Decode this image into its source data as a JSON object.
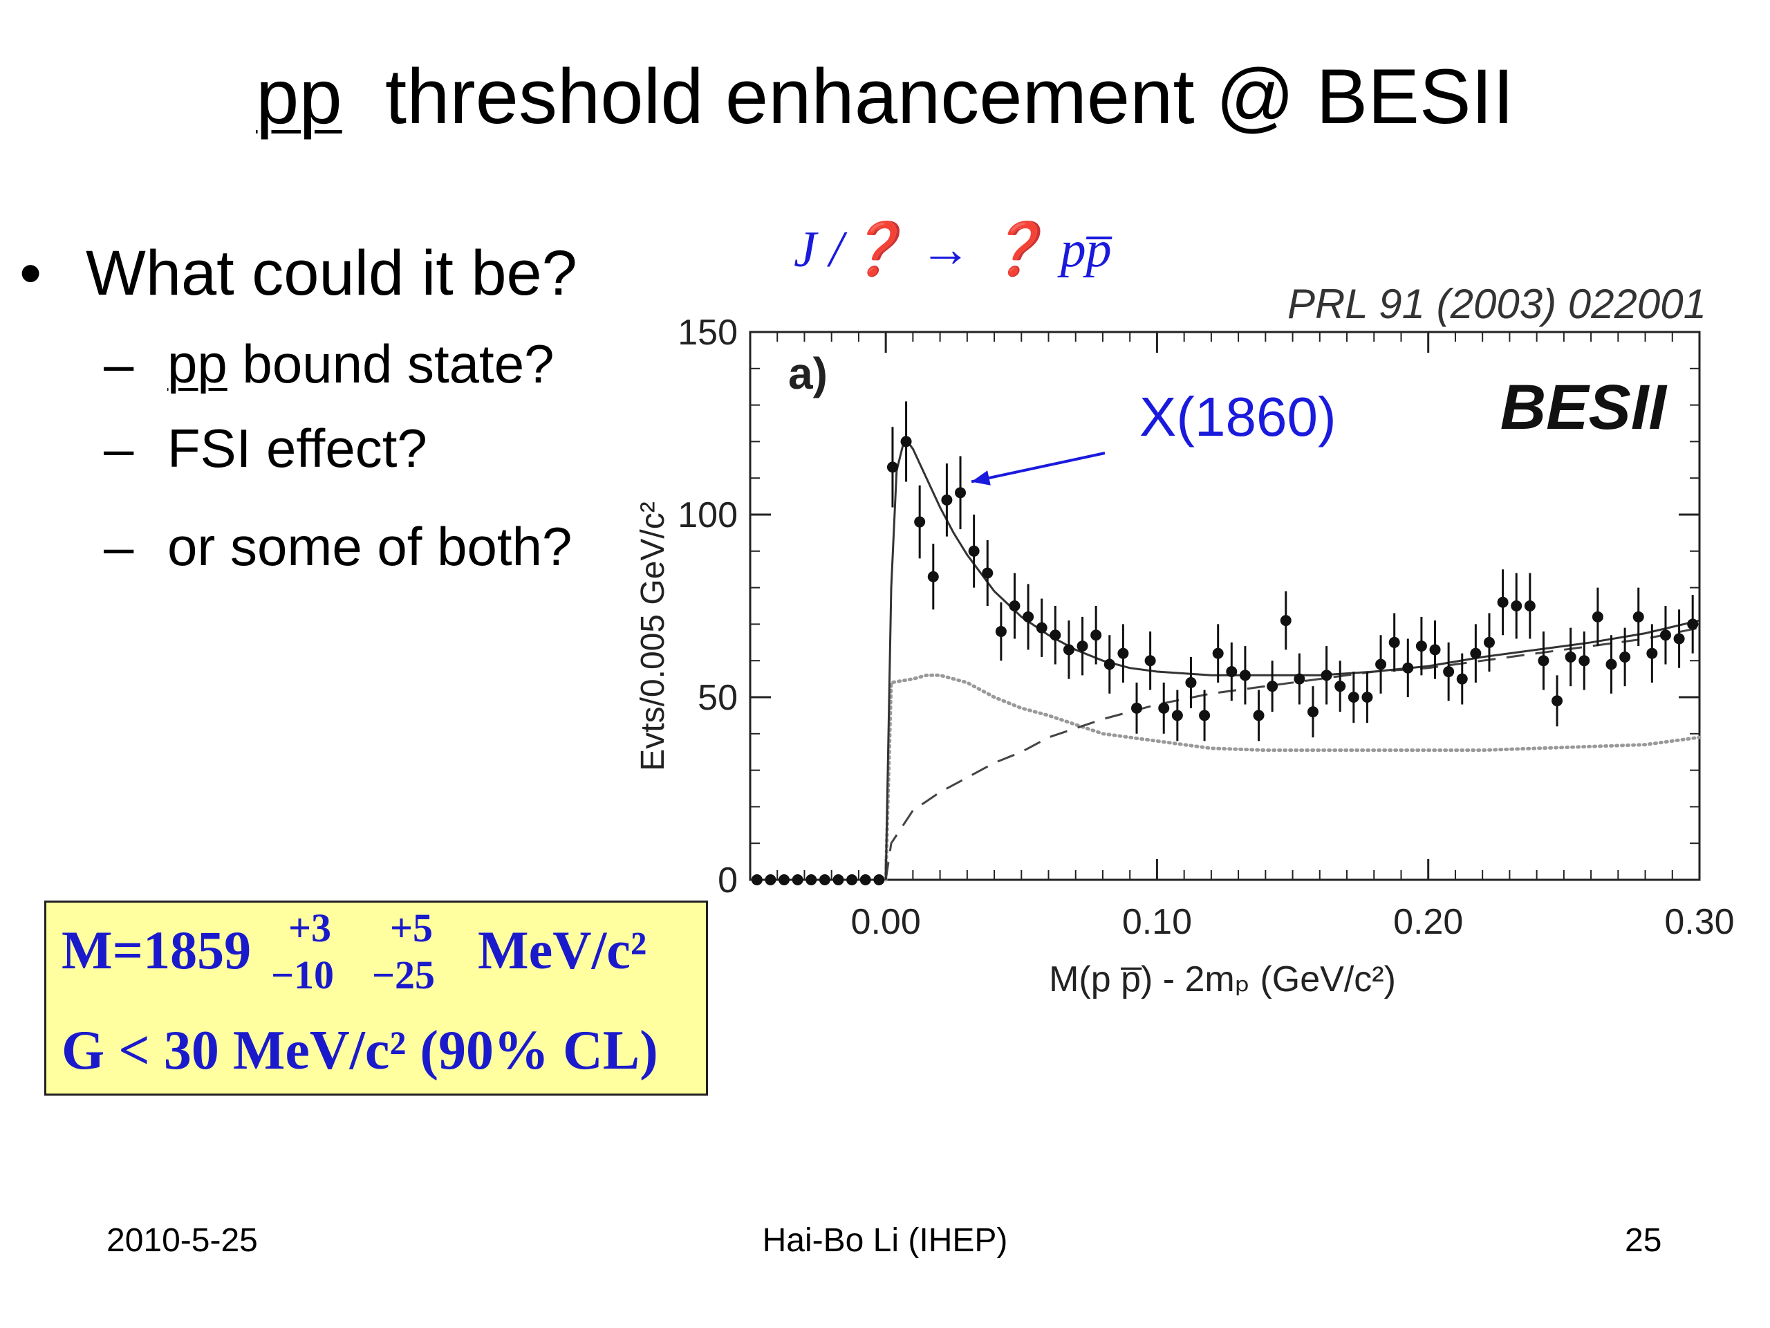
{
  "slide": {
    "title_pp": "pp",
    "title_rest": "threshold enhancement @ BESII",
    "bullet": "What could it be?",
    "sub_items": [
      {
        "dash": "–",
        "pp": "pp",
        "text": " bound state?"
      },
      {
        "dash": "–",
        "text": "FSI effect?"
      },
      {
        "dash": "–",
        "text": "or some of both?"
      }
    ],
    "process_label": "J /❓ → ❓ pp̅"
  },
  "result_box": {
    "mass_prefix": "M=1859",
    "mass_up1": "+3",
    "mass_down1": "−10",
    "mass_up2": "+5",
    "mass_down2": "−25",
    "mass_unit": "MeV/c²",
    "width_line": "G < 30 MeV/c² (90% CL)",
    "text_color": "#1a1acc",
    "background_color": "#ffffa0"
  },
  "footer": {
    "date": "2010-5-25",
    "author": "Hai-Bo Li (IHEP)",
    "page": "25"
  },
  "chart_data": {
    "type": "scatter",
    "panel_label": "a)",
    "reference": "PRL 91 (2003) 022001",
    "experiment": "BESII",
    "annotation": "X(1860)",
    "annotation_color": "#1a1add",
    "ylabel": "Evts/0.005 GeV/c²",
    "xlabel": "M(p p̅) - 2mₚ (GeV/c²)",
    "xlim": [
      -0.05,
      0.3
    ],
    "ylim": [
      0,
      150
    ],
    "x_ticks": [
      0.0,
      0.1,
      0.2,
      0.3
    ],
    "x_tick_labels": [
      "0.00",
      "0.10",
      "0.20",
      "0.30"
    ],
    "y_ticks": [
      0,
      50,
      100,
      150
    ],
    "y_tick_labels": [
      "0",
      "50",
      "100",
      "150"
    ],
    "points": [
      {
        "x": -0.0475,
        "y": 0,
        "err": 0
      },
      {
        "x": -0.0425,
        "y": 0,
        "err": 0
      },
      {
        "x": -0.0375,
        "y": 0,
        "err": 0
      },
      {
        "x": -0.0325,
        "y": 0,
        "err": 0
      },
      {
        "x": -0.0275,
        "y": 0,
        "err": 0
      },
      {
        "x": -0.0225,
        "y": 0,
        "err": 0
      },
      {
        "x": -0.0175,
        "y": 0,
        "err": 0
      },
      {
        "x": -0.0125,
        "y": 0,
        "err": 0
      },
      {
        "x": -0.0075,
        "y": 0,
        "err": 0
      },
      {
        "x": -0.0025,
        "y": 0,
        "err": 0
      },
      {
        "x": 0.0025,
        "y": 113,
        "err": 11
      },
      {
        "x": 0.0075,
        "y": 120,
        "err": 11
      },
      {
        "x": 0.0125,
        "y": 98,
        "err": 10
      },
      {
        "x": 0.0175,
        "y": 83,
        "err": 9
      },
      {
        "x": 0.0225,
        "y": 104,
        "err": 10
      },
      {
        "x": 0.0275,
        "y": 106,
        "err": 10
      },
      {
        "x": 0.0325,
        "y": 90,
        "err": 10
      },
      {
        "x": 0.0375,
        "y": 84,
        "err": 9
      },
      {
        "x": 0.0425,
        "y": 68,
        "err": 8
      },
      {
        "x": 0.0475,
        "y": 75,
        "err": 9
      },
      {
        "x": 0.0525,
        "y": 72,
        "err": 9
      },
      {
        "x": 0.0575,
        "y": 69,
        "err": 8
      },
      {
        "x": 0.0625,
        "y": 67,
        "err": 8
      },
      {
        "x": 0.0675,
        "y": 63,
        "err": 8
      },
      {
        "x": 0.0725,
        "y": 64,
        "err": 8
      },
      {
        "x": 0.0775,
        "y": 67,
        "err": 8
      },
      {
        "x": 0.0825,
        "y": 59,
        "err": 8
      },
      {
        "x": 0.0875,
        "y": 62,
        "err": 8
      },
      {
        "x": 0.0925,
        "y": 47,
        "err": 7
      },
      {
        "x": 0.0975,
        "y": 60,
        "err": 8
      },
      {
        "x": 0.1025,
        "y": 47,
        "err": 7
      },
      {
        "x": 0.1075,
        "y": 45,
        "err": 7
      },
      {
        "x": 0.1125,
        "y": 54,
        "err": 7
      },
      {
        "x": 0.1175,
        "y": 45,
        "err": 7
      },
      {
        "x": 0.1225,
        "y": 62,
        "err": 8
      },
      {
        "x": 0.1275,
        "y": 57,
        "err": 8
      },
      {
        "x": 0.1325,
        "y": 56,
        "err": 8
      },
      {
        "x": 0.1375,
        "y": 45,
        "err": 7
      },
      {
        "x": 0.1425,
        "y": 53,
        "err": 7
      },
      {
        "x": 0.1475,
        "y": 71,
        "err": 8
      },
      {
        "x": 0.1525,
        "y": 55,
        "err": 7
      },
      {
        "x": 0.1575,
        "y": 46,
        "err": 7
      },
      {
        "x": 0.1625,
        "y": 56,
        "err": 8
      },
      {
        "x": 0.1675,
        "y": 53,
        "err": 7
      },
      {
        "x": 0.1725,
        "y": 50,
        "err": 7
      },
      {
        "x": 0.1775,
        "y": 50,
        "err": 7
      },
      {
        "x": 0.1825,
        "y": 59,
        "err": 8
      },
      {
        "x": 0.1875,
        "y": 65,
        "err": 8
      },
      {
        "x": 0.1925,
        "y": 58,
        "err": 8
      },
      {
        "x": 0.1975,
        "y": 64,
        "err": 8
      },
      {
        "x": 0.2025,
        "y": 63,
        "err": 8
      },
      {
        "x": 0.2075,
        "y": 57,
        "err": 8
      },
      {
        "x": 0.2125,
        "y": 55,
        "err": 7
      },
      {
        "x": 0.2175,
        "y": 62,
        "err": 8
      },
      {
        "x": 0.2225,
        "y": 65,
        "err": 8
      },
      {
        "x": 0.2275,
        "y": 76,
        "err": 9
      },
      {
        "x": 0.2325,
        "y": 75,
        "err": 9
      },
      {
        "x": 0.2375,
        "y": 75,
        "err": 9
      },
      {
        "x": 0.2425,
        "y": 60,
        "err": 8
      },
      {
        "x": 0.2475,
        "y": 49,
        "err": 7
      },
      {
        "x": 0.2525,
        "y": 61,
        "err": 8
      },
      {
        "x": 0.2575,
        "y": 60,
        "err": 8
      },
      {
        "x": 0.2625,
        "y": 72,
        "err": 8
      },
      {
        "x": 0.2675,
        "y": 59,
        "err": 8
      },
      {
        "x": 0.2725,
        "y": 61,
        "err": 8
      },
      {
        "x": 0.2775,
        "y": 72,
        "err": 8
      },
      {
        "x": 0.2825,
        "y": 62,
        "err": 8
      },
      {
        "x": 0.2875,
        "y": 67,
        "err": 8
      },
      {
        "x": 0.2925,
        "y": 66,
        "err": 8
      },
      {
        "x": 0.2975,
        "y": 70,
        "err": 8
      }
    ],
    "curves": {
      "total_fit": [
        [
          0.0,
          0
        ],
        [
          0.002,
          80
        ],
        [
          0.004,
          112
        ],
        [
          0.007,
          121
        ],
        [
          0.01,
          118
        ],
        [
          0.015,
          110
        ],
        [
          0.02,
          102
        ],
        [
          0.025,
          95
        ],
        [
          0.03,
          89
        ],
        [
          0.035,
          84
        ],
        [
          0.04,
          79
        ],
        [
          0.05,
          72
        ],
        [
          0.06,
          67
        ],
        [
          0.07,
          63
        ],
        [
          0.08,
          60
        ],
        [
          0.09,
          58
        ],
        [
          0.1,
          57
        ],
        [
          0.12,
          56
        ],
        [
          0.14,
          56
        ],
        [
          0.16,
          56
        ],
        [
          0.18,
          57
        ],
        [
          0.2,
          58.5
        ],
        [
          0.22,
          61
        ],
        [
          0.24,
          63
        ],
        [
          0.26,
          65
        ],
        [
          0.28,
          67.5
        ],
        [
          0.3,
          71
        ]
      ],
      "background": [
        [
          0.0,
          0
        ],
        [
          0.002,
          10
        ],
        [
          0.01,
          19
        ],
        [
          0.02,
          24
        ],
        [
          0.03,
          28
        ],
        [
          0.04,
          32
        ],
        [
          0.05,
          35
        ],
        [
          0.06,
          39
        ],
        [
          0.08,
          44
        ],
        [
          0.1,
          48
        ],
        [
          0.12,
          51
        ],
        [
          0.14,
          53
        ],
        [
          0.16,
          55
        ],
        [
          0.18,
          57
        ],
        [
          0.2,
          58
        ],
        [
          0.22,
          60
        ],
        [
          0.24,
          62
        ],
        [
          0.26,
          64
        ],
        [
          0.28,
          66
        ],
        [
          0.3,
          69
        ]
      ],
      "phase_space": [
        [
          0.0,
          0
        ],
        [
          0.002,
          54
        ],
        [
          0.01,
          55
        ],
        [
          0.015,
          56
        ],
        [
          0.02,
          56
        ],
        [
          0.03,
          54
        ],
        [
          0.04,
          50
        ],
        [
          0.05,
          47
        ],
        [
          0.06,
          45
        ],
        [
          0.08,
          40
        ],
        [
          0.1,
          38
        ],
        [
          0.12,
          36
        ],
        [
          0.14,
          35.5
        ],
        [
          0.16,
          35.5
        ],
        [
          0.18,
          35.5
        ],
        [
          0.2,
          35.5
        ],
        [
          0.22,
          35.5
        ],
        [
          0.24,
          36
        ],
        [
          0.26,
          36.5
        ],
        [
          0.28,
          37
        ],
        [
          0.3,
          39
        ]
      ]
    },
    "grid": false
  }
}
